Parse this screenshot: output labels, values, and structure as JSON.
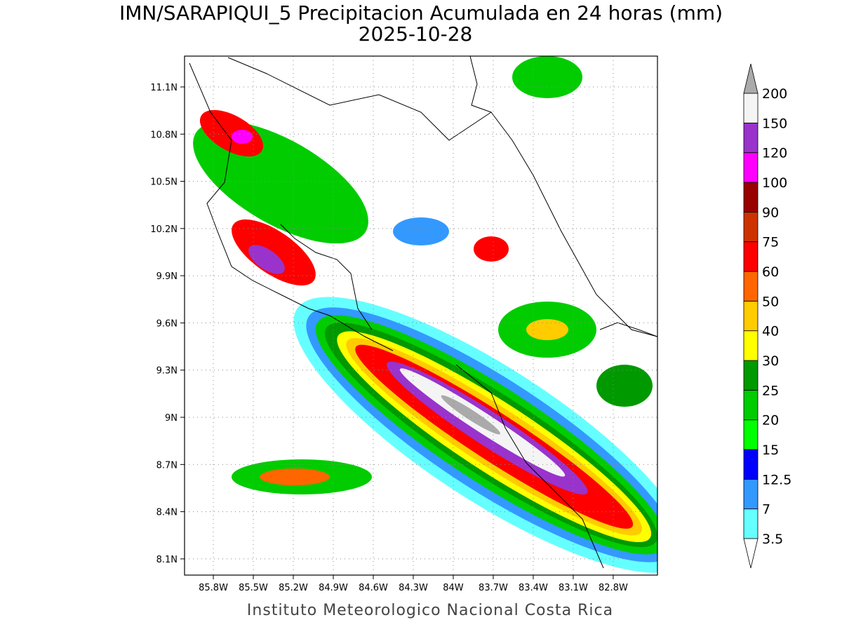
{
  "title": "IMN/SARAPIQUI_5 Precipitacion Acumulada en 24 horas (mm)",
  "subtitle": "2025-10-28",
  "footer": "Instituto Meteorologico Nacional Costa Rica",
  "map": {
    "xlim": [
      -86.016,
      -82.468
    ],
    "ylim": [
      7.997,
      11.296
    ],
    "grid": true,
    "xticks": [
      {
        "value": -85.8,
        "label": "85.8W"
      },
      {
        "value": -85.5,
        "label": "85.5W"
      },
      {
        "value": -85.2,
        "label": "85.2W"
      },
      {
        "value": -84.9,
        "label": "84.9W"
      },
      {
        "value": -84.6,
        "label": "84.6W"
      },
      {
        "value": -84.3,
        "label": "84.3W"
      },
      {
        "value": -84,
        "label": "84W"
      },
      {
        "value": -83.7,
        "label": "83.7W"
      },
      {
        "value": -83.4,
        "label": "83.4W"
      },
      {
        "value": -83.1,
        "label": "83.1W"
      },
      {
        "value": -82.8,
        "label": "82.8W"
      }
    ],
    "yticks": [
      {
        "value": 8.1,
        "label": "8.1N"
      },
      {
        "value": 8.4,
        "label": "8.4N"
      },
      {
        "value": 8.7,
        "label": "8.7N"
      },
      {
        "value": 9,
        "label": "9N"
      },
      {
        "value": 9.3,
        "label": "9.3N"
      },
      {
        "value": 9.6,
        "label": "9.6N"
      },
      {
        "value": 9.9,
        "label": "9.9N"
      },
      {
        "value": 10.2,
        "label": "10.2N"
      },
      {
        "value": 10.5,
        "label": "10.5N"
      },
      {
        "value": 10.8,
        "label": "10.8N"
      },
      {
        "value": 11.1,
        "label": "11.1N"
      }
    ]
  },
  "colorbar": {
    "levels": [
      3.5,
      7,
      12.5,
      15,
      20,
      25,
      30,
      40,
      50,
      60,
      75,
      90,
      100,
      120,
      150,
      200
    ],
    "colors": [
      "#66ffff",
      "#3399ff",
      "#0000ff",
      "#00ff00",
      "#00cc00",
      "#009900",
      "#ffff00",
      "#ffcc00",
      "#ff6600",
      "#ff0000",
      "#cc3300",
      "#990000",
      "#ff00ff",
      "#9933cc",
      "#f4f4f4"
    ],
    "under_color": "#ffffff",
    "over_color": "#aaaaaa"
  }
}
